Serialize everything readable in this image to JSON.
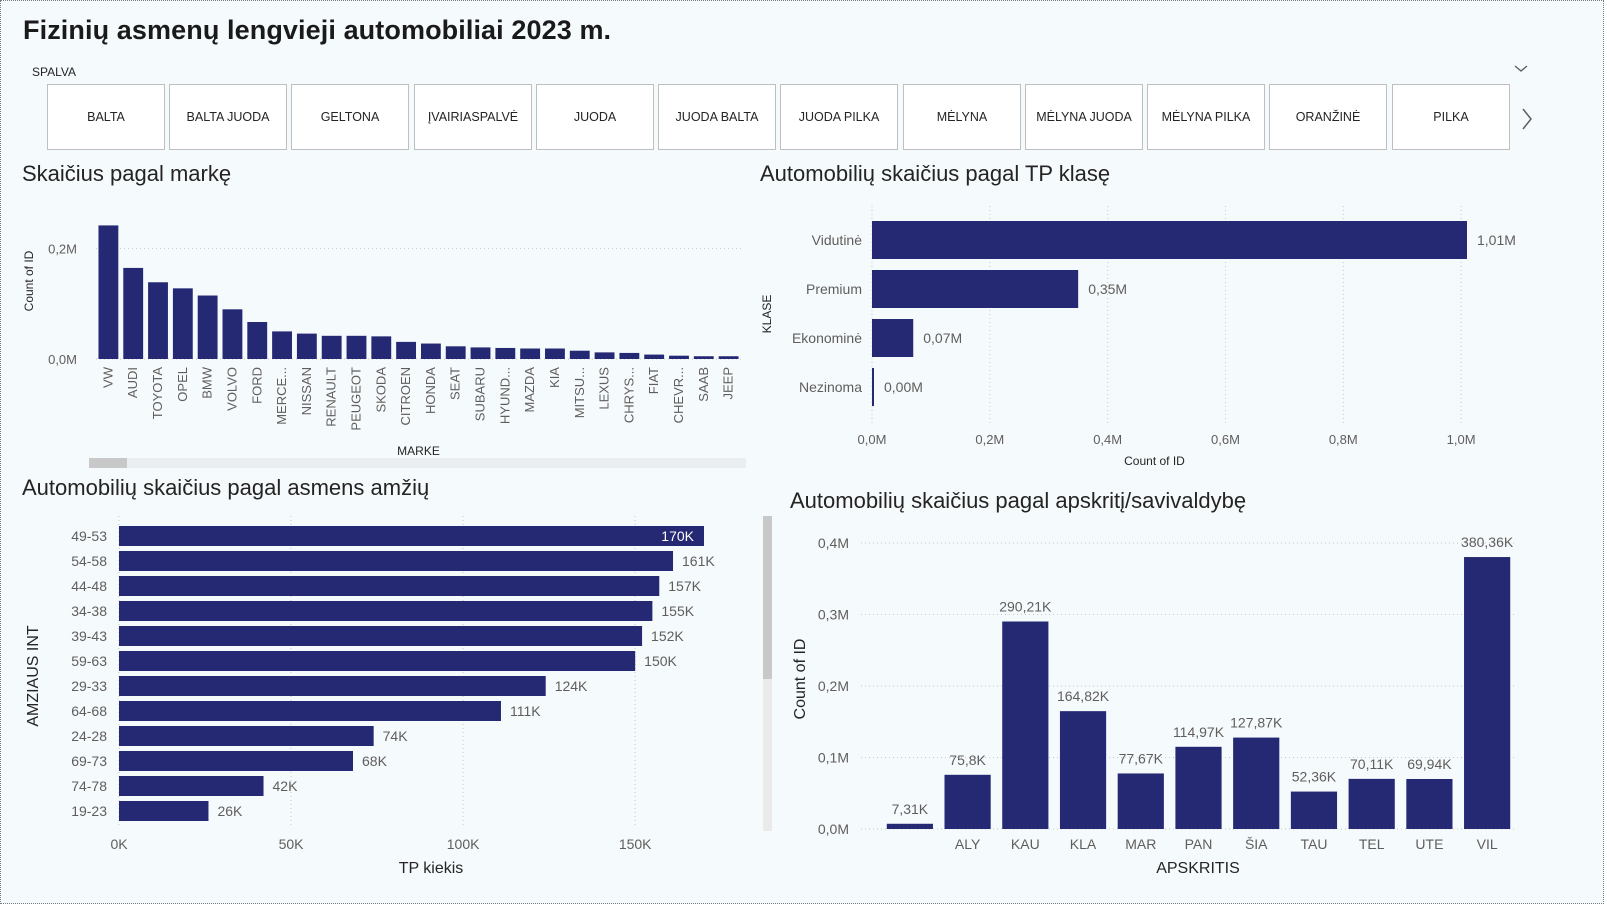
{
  "page": {
    "title": "Fizinių asmenų lengvieji automobiliai 2023 m."
  },
  "slicer": {
    "title": "SPALVA",
    "options": [
      "BALTA",
      "BALTA JUODA",
      "GELTONA",
      "ĮVAIRIASPALVĖ",
      "JUODA",
      "JUODA BALTA",
      "JUODA PILKA",
      "MĖLYNA",
      "MĖLYNA JUODA",
      "MĖLYNA PILKA",
      "ORANŽINĖ",
      "PILKA"
    ]
  },
  "colors": {
    "bar": "#252872",
    "grid": "#c8c8c8",
    "text": "#605e5c"
  },
  "charts": {
    "brand": {
      "title": "Skaičius pagal markę"
    },
    "tp": {
      "title": "Automobilių skaičius pagal TP klasę"
    },
    "age": {
      "title": "Automobilių skaičius pagal asmens amžių"
    },
    "region": {
      "title": "Automobilių skaičius pagal apskritį/savivaldybę"
    }
  },
  "chart_data": [
    {
      "id": "brand",
      "type": "bar",
      "title": "Skaičius pagal markę",
      "xlabel": "MARKE",
      "ylabel": "Count of ID",
      "categories": [
        "VW",
        "AUDI",
        "TOYOTA",
        "OPEL",
        "BMW",
        "VOLVO",
        "FORD",
        "MERCE...",
        "NISSAN",
        "RENAULT",
        "PEUGEOT",
        "SKODA",
        "CITROEN",
        "HONDA",
        "SEAT",
        "SUBARU",
        "HYUND...",
        "MAZDA",
        "KIA",
        "MITSU...",
        "LEXUS",
        "CHRYS...",
        "FIAT",
        "CHEVR...",
        "SAAB",
        "JEEP"
      ],
      "values": [
        242000,
        165000,
        139000,
        128000,
        115000,
        90000,
        67000,
        50000,
        46000,
        42000,
        42000,
        41000,
        31000,
        28000,
        23000,
        21000,
        20000,
        19000,
        19000,
        15000,
        12000,
        11000,
        8000,
        6000,
        5000,
        5000
      ],
      "yticks": [
        {
          "v": 0,
          "label": "0,0M"
        },
        {
          "v": 200000,
          "label": "0,2M"
        }
      ],
      "ylim": [
        0,
        250000
      ]
    },
    {
      "id": "tp",
      "type": "bar",
      "orientation": "horizontal",
      "title": "Automobilių skaičius pagal TP klasę",
      "xlabel": "Count of ID",
      "ylabel": "KLASE",
      "categories": [
        "Vidutinė",
        "Premium",
        "Ekonominė",
        "Nezinoma"
      ],
      "values": [
        1010000,
        350000,
        70000,
        2000
      ],
      "labels": [
        "1,01M",
        "0,35M",
        "0,07M",
        "0,00M"
      ],
      "xticks": [
        {
          "v": 0,
          "label": "0,0M"
        },
        {
          "v": 200000,
          "label": "0,2M"
        },
        {
          "v": 400000,
          "label": "0,4M"
        },
        {
          "v": 600000,
          "label": "0,6M"
        },
        {
          "v": 800000,
          "label": "0,8M"
        },
        {
          "v": 1000000,
          "label": "1,0M"
        }
      ],
      "xlim": [
        0,
        1010000
      ]
    },
    {
      "id": "age",
      "type": "bar",
      "orientation": "horizontal",
      "title": "Automobilių skaičius pagal asmens amžių",
      "xlabel": "TP kiekis",
      "ylabel": "AMZIAUS INT",
      "categories": [
        "49-53",
        "54-58",
        "44-48",
        "34-38",
        "39-43",
        "59-63",
        "29-33",
        "64-68",
        "24-28",
        "69-73",
        "74-78",
        "19-23"
      ],
      "values": [
        170000,
        161000,
        157000,
        155000,
        152000,
        150000,
        124000,
        111000,
        74000,
        68000,
        42000,
        26000
      ],
      "labels": [
        "170K",
        "161K",
        "157K",
        "155K",
        "152K",
        "150K",
        "124K",
        "111K",
        "74K",
        "68K",
        "42K",
        "26K"
      ],
      "xticks": [
        {
          "v": 0,
          "label": "0K"
        },
        {
          "v": 50000,
          "label": "50K"
        },
        {
          "v": 100000,
          "label": "100K"
        },
        {
          "v": 150000,
          "label": "150K"
        }
      ],
      "xlim": [
        0,
        170000
      ]
    },
    {
      "id": "region",
      "type": "bar",
      "title": "Automobilių skaičius pagal apskritį/savivaldybę",
      "xlabel": "APSKRITIS",
      "ylabel": "Count of ID",
      "categories": [
        "",
        "ALY",
        "KAU",
        "KLA",
        "MAR",
        "PAN",
        "ŠIA",
        "TAU",
        "TEL",
        "UTE",
        "VIL"
      ],
      "values": [
        7310,
        75800,
        290210,
        164820,
        77670,
        114970,
        127870,
        52360,
        70110,
        69940,
        380360
      ],
      "labels": [
        "7,31K",
        "75,8K",
        "290,21K",
        "164,82K",
        "77,67K",
        "114,97K",
        "127,87K",
        "52,36K",
        "70,11K",
        "69,94K",
        "380,36K"
      ],
      "yticks": [
        {
          "v": 0,
          "label": "0,0M"
        },
        {
          "v": 100000,
          "label": "0,1M"
        },
        {
          "v": 200000,
          "label": "0,2M"
        },
        {
          "v": 300000,
          "label": "0,3M"
        },
        {
          "v": 400000,
          "label": "0,4M"
        }
      ],
      "ylim": [
        0,
        400000
      ]
    }
  ]
}
